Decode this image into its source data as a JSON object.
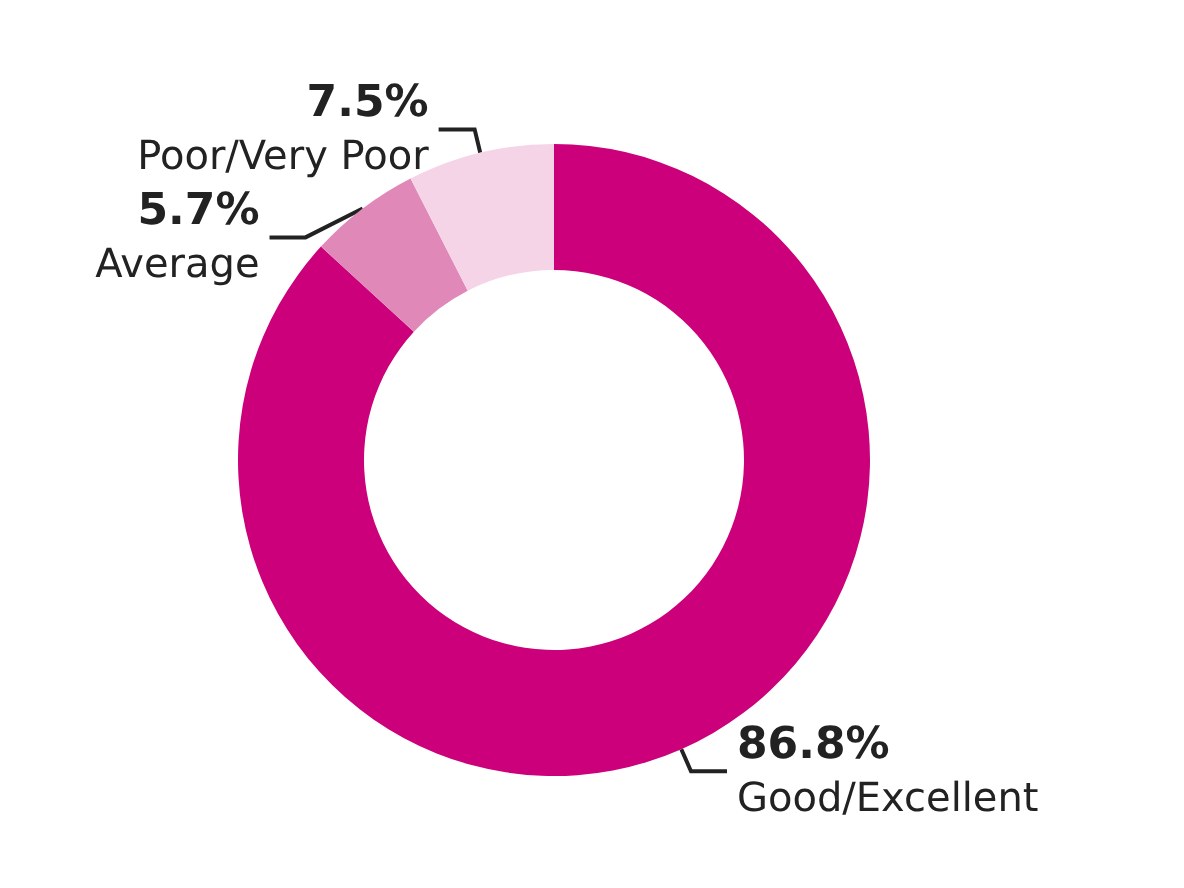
{
  "chart_data": {
    "type": "donut",
    "categories": [
      "Good/Excellent",
      "Average",
      "Poor/Very Poor"
    ],
    "values": [
      86.8,
      5.7,
      7.5
    ],
    "colors": [
      "#cc007a",
      "#e088b8",
      "#f5d4e8"
    ],
    "value_labels": [
      "86.8%",
      "5.7%",
      "7.5%"
    ],
    "legend": false
  }
}
